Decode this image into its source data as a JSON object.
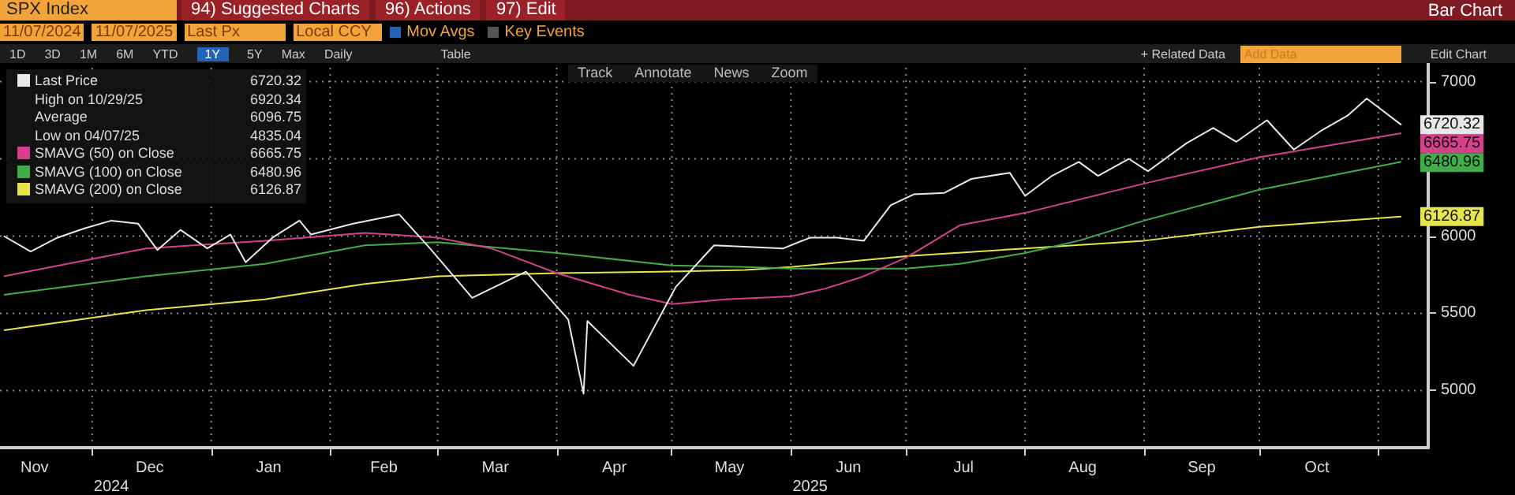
{
  "chart_data": {
    "type": "line",
    "title": "SPX Index",
    "annotations": [
      "94) Suggested Charts",
      "96) Actions",
      "97) Edit",
      "Bar Chart",
      "11/07/2024",
      "11/07/2025",
      "Last Px",
      "Local CCY",
      "Mov Avgs",
      "Key Events",
      "1D",
      "3D",
      "1M",
      "6M",
      "YTD",
      "1Y",
      "5Y",
      "Max",
      "Daily",
      "Table",
      "+ Related Data",
      "Add Data",
      "Edit Chart",
      "Track",
      "Annotate",
      "News",
      "Zoom",
      "High on 10/29/25 6920.34",
      "Average 6096.75",
      "Low on 04/07/25 4835.04"
    ],
    "xlim": [
      "2024-11-07",
      "2025-11-14"
    ],
    "xticks": [
      {
        "value": "2024-11-16",
        "label": "Nov"
      },
      {
        "value": "2024-12-01",
        "label": null
      },
      {
        "value": "2024-12-16",
        "label": "Dec"
      },
      {
        "value": "2025-01-01",
        "label": null
      },
      {
        "value": "2025-01-16",
        "label": "Jan"
      },
      {
        "value": "2025-02-01",
        "label": null
      },
      {
        "value": "2025-02-15",
        "label": "Feb"
      },
      {
        "value": "2025-03-01",
        "label": null
      },
      {
        "value": "2025-03-16",
        "label": "Mar"
      },
      {
        "value": "2025-04-01",
        "label": null
      },
      {
        "value": "2025-04-16",
        "label": "Apr"
      },
      {
        "value": "2025-05-01",
        "label": null
      },
      {
        "value": "2025-05-16",
        "label": "May"
      },
      {
        "value": "2025-06-01",
        "label": null
      },
      {
        "value": "2025-06-16",
        "label": "Jun"
      },
      {
        "value": "2025-07-01",
        "label": null
      },
      {
        "value": "2025-07-16",
        "label": "Jul"
      },
      {
        "value": "2025-08-01",
        "label": null
      },
      {
        "value": "2025-08-16",
        "label": "Aug"
      },
      {
        "value": "2025-09-01",
        "label": null
      },
      {
        "value": "2025-09-16",
        "label": "Sep"
      },
      {
        "value": "2025-10-01",
        "label": null
      },
      {
        "value": "2025-10-16",
        "label": "Oct"
      },
      {
        "value": "2025-11-01",
        "label": null
      }
    ],
    "x2lim": [
      "2024-11-07",
      "2025-11-14"
    ],
    "x2ticks": [
      {
        "value": "2024-12-06",
        "label": "2024"
      },
      {
        "value": "2025-06-06",
        "label": "2025"
      }
    ],
    "ylim": [
      4630,
      7120
    ],
    "yticks": [
      5000,
      5500,
      6000,
      {
        "value": 6500,
        "label": null
      },
      7000
    ],
    "grid": true,
    "legend": "top left",
    "marker": "none",
    "line_style": "solid",
    "series": [
      {
        "name": "Last Price",
        "color": "#e8e8e8",
        "x": [
          "2024-11-08",
          "2024-11-15",
          "2024-11-22",
          "2024-11-29",
          "2024-12-06",
          "2024-12-13",
          "2024-12-18",
          "2024-12-24",
          "2024-12-31",
          "2025-01-06",
          "2025-01-10",
          "2025-01-17",
          "2025-01-24",
          "2025-01-27",
          "2025-02-07",
          "2025-02-19",
          "2025-02-27",
          "2025-03-10",
          "2025-03-24",
          "2025-04-04",
          "2025-04-08",
          "2025-04-09",
          "2025-04-21",
          "2025-05-02",
          "2025-05-12",
          "2025-05-30",
          "2025-06-06",
          "2025-06-13",
          "2025-06-20",
          "2025-06-27",
          "2025-07-03",
          "2025-07-11",
          "2025-07-18",
          "2025-07-28",
          "2025-08-01",
          "2025-08-08",
          "2025-08-15",
          "2025-08-20",
          "2025-08-28",
          "2025-09-02",
          "2025-09-12",
          "2025-09-19",
          "2025-09-25",
          "2025-10-03",
          "2025-10-10",
          "2025-10-17",
          "2025-10-24",
          "2025-10-29",
          "2025-11-07"
        ],
        "values": [
          6000,
          5900,
          5990,
          6050,
          6100,
          6080,
          5910,
          6040,
          5920,
          6010,
          5830,
          5990,
          6100,
          6010,
          6080,
          6140,
          5920,
          5600,
          5770,
          5460,
          4980,
          5450,
          5160,
          5670,
          5940,
          5920,
          5990,
          5990,
          5970,
          6200,
          6270,
          6280,
          6370,
          6410,
          6260,
          6390,
          6480,
          6390,
          6500,
          6420,
          6600,
          6700,
          6610,
          6750,
          6560,
          6680,
          6780,
          6890,
          6720.32
        ],
        "value_labels": [
          null,
          null,
          null,
          null,
          null,
          null,
          null,
          null,
          null,
          null,
          null,
          null,
          null,
          null,
          null,
          null,
          null,
          null,
          null,
          null,
          null,
          null,
          null,
          null,
          null,
          null,
          null,
          null,
          null,
          null,
          null,
          null,
          null,
          null,
          null,
          null,
          null,
          null,
          null,
          null,
          null,
          null,
          null,
          null,
          null,
          null,
          null,
          null,
          "6720.32"
        ]
      },
      {
        "name": "SMAVG (50)  on Close",
        "color": "#d6408b",
        "x": [
          "2024-11-08",
          "2024-12-15",
          "2025-01-15",
          "2025-02-10",
          "2025-03-01",
          "2025-03-15",
          "2025-04-01",
          "2025-04-20",
          "2025-05-01",
          "2025-05-15",
          "2025-06-01",
          "2025-06-10",
          "2025-06-20",
          "2025-07-01",
          "2025-07-15",
          "2025-08-01",
          "2025-09-01",
          "2025-10-01",
          "2025-11-07"
        ],
        "values": [
          5740,
          5920,
          5970,
          6020,
          5990,
          5920,
          5760,
          5620,
          5560,
          5590,
          5610,
          5660,
          5740,
          5860,
          6070,
          6150,
          6340,
          6510,
          6665.75
        ],
        "value_labels": [
          null,
          null,
          null,
          null,
          null,
          null,
          null,
          null,
          null,
          null,
          null,
          null,
          null,
          null,
          null,
          null,
          null,
          null,
          "6665.75"
        ]
      },
      {
        "name": "SMAVG (100)  on Close",
        "color": "#3fae49",
        "x": [
          "2024-11-08",
          "2024-12-15",
          "2025-01-15",
          "2025-02-10",
          "2025-03-01",
          "2025-04-01",
          "2025-05-01",
          "2025-05-20",
          "2025-06-01",
          "2025-07-01",
          "2025-07-15",
          "2025-08-01",
          "2025-08-15",
          "2025-09-01",
          "2025-10-01",
          "2025-11-07"
        ],
        "values": [
          5620,
          5740,
          5820,
          5940,
          5960,
          5890,
          5810,
          5800,
          5790,
          5790,
          5820,
          5890,
          5970,
          6100,
          6300,
          6480.96
        ],
        "value_labels": [
          null,
          null,
          null,
          null,
          null,
          null,
          null,
          null,
          null,
          null,
          null,
          null,
          null,
          null,
          null,
          "6480.96"
        ]
      },
      {
        "name": "SMAVG (200)  on Close",
        "color": "#e6e64c",
        "x": [
          "2024-11-08",
          "2024-12-15",
          "2025-01-15",
          "2025-02-10",
          "2025-03-01",
          "2025-04-01",
          "2025-05-01",
          "2025-05-20",
          "2025-06-01",
          "2025-07-01",
          "2025-08-01",
          "2025-09-01",
          "2025-10-01",
          "2025-11-07"
        ],
        "values": [
          5390,
          5520,
          5590,
          5690,
          5740,
          5760,
          5770,
          5780,
          5800,
          5870,
          5920,
          5970,
          6060,
          6126.87
        ],
        "value_labels": [
          null,
          null,
          null,
          null,
          null,
          null,
          null,
          null,
          null,
          null,
          null,
          null,
          null,
          "6126.87"
        ]
      }
    ]
  }
}
